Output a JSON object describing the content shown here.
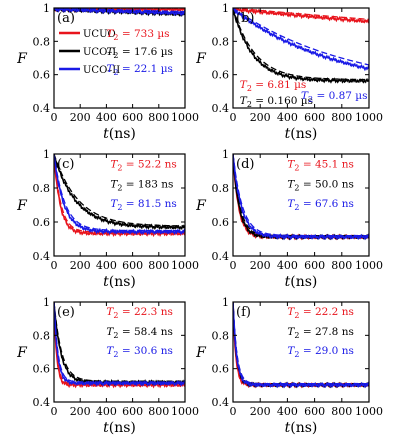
{
  "chart_data": [
    {
      "panel": "(a)",
      "type": "line",
      "xlabel": "t(ns)",
      "ylabel": "F",
      "xlim": [
        0,
        1000
      ],
      "ylim": [
        0.4,
        1.0
      ],
      "xticks": [
        "0",
        "200",
        "400",
        "600",
        "800",
        "1000"
      ],
      "yticks": [
        "0.4",
        "0.6",
        "0.8",
        "1"
      ],
      "legend": [
        {
          "label": "UCUO",
          "color": "#e8141c"
        },
        {
          "label": "UCO–I",
          "color": "#000000"
        },
        {
          "label": "UCO–II",
          "color": "#1a1ae6"
        }
      ],
      "annotations": [
        {
          "prefix": "T",
          "sub": "2",
          "value": " = 733 µs",
          "color": "#e8141c"
        },
        {
          "prefix": "T",
          "sub": "2",
          "value": " = 17.6 µs",
          "color": "#000000"
        },
        {
          "prefix": "T",
          "sub": "2",
          "value": " = 22.1 µs",
          "color": "#1a1ae6"
        }
      ],
      "series": [
        {
          "color": "#e8141c",
          "floor": 0.5,
          "T": 733000
        },
        {
          "color": "#000000",
          "floor": 0.5,
          "T": 17600
        },
        {
          "color": "#1a1ae6",
          "floor": 0.5,
          "T": 22100
        }
      ]
    },
    {
      "panel": "(b)",
      "type": "line",
      "xlabel": "t(ns)",
      "ylabel": "F",
      "xlim": [
        0,
        1000
      ],
      "ylim": [
        0.4,
        1.0
      ],
      "xticks": [
        "0",
        "200",
        "400",
        "600",
        "800",
        "1000"
      ],
      "yticks": [
        "0.4",
        "0.6",
        "0.8",
        "1"
      ],
      "annotations": [
        {
          "prefix": "T",
          "sub": "2",
          "value": " = 6.81 µs",
          "color": "#e8141c"
        },
        {
          "prefix": "T",
          "sub": "2",
          "value": " = 0.160 µs",
          "color": "#000000"
        },
        {
          "prefix": "T",
          "sub": "2",
          "value": " = 0.87 µs",
          "color": "#1a1ae6"
        }
      ],
      "series": [
        {
          "color": "#e8141c",
          "floor": 0.5,
          "T": 6810
        },
        {
          "color": "#000000",
          "floor": 0.57,
          "T": 160
        },
        {
          "color": "#1a1ae6",
          "floor": 0.5,
          "T": 870
        }
      ]
    },
    {
      "panel": "(c)",
      "type": "line",
      "xlabel": "t(ns)",
      "ylabel": "F",
      "xlim": [
        0,
        1000
      ],
      "ylim": [
        0.4,
        1.0
      ],
      "xticks": [
        "0",
        "200",
        "400",
        "600",
        "800",
        "1000"
      ],
      "yticks": [
        "0.4",
        "0.6",
        "0.8",
        "1"
      ],
      "annotations": [
        {
          "prefix": "T",
          "sub": "2",
          "value": " = 52.2 ns",
          "color": "#e8141c"
        },
        {
          "prefix": "T",
          "sub": "2",
          "value": " = 183 ns",
          "color": "#000000"
        },
        {
          "prefix": "T",
          "sub": "2",
          "value": " = 81.5 ns",
          "color": "#1a1ae6"
        }
      ],
      "series": [
        {
          "color": "#e8141c",
          "floor": 0.54,
          "T": 52.2
        },
        {
          "color": "#000000",
          "floor": 0.575,
          "T": 183
        },
        {
          "color": "#1a1ae6",
          "floor": 0.55,
          "T": 81.5
        }
      ]
    },
    {
      "panel": "(d)",
      "type": "line",
      "xlabel": "t(ns)",
      "ylabel": "F",
      "xlim": [
        0,
        1000
      ],
      "ylim": [
        0.4,
        1.0
      ],
      "xticks": [
        "0",
        "200",
        "400",
        "600",
        "800",
        "1000"
      ],
      "yticks": [
        "0.4",
        "0.6",
        "0.8",
        "1"
      ],
      "annotations": [
        {
          "prefix": "T",
          "sub": "2",
          "value": " = 45.1 ns",
          "color": "#e8141c"
        },
        {
          "prefix": "T",
          "sub": "2",
          "value": " = 50.0 ns",
          "color": "#000000"
        },
        {
          "prefix": "T",
          "sub": "2",
          "value": " = 67.6 ns",
          "color": "#1a1ae6"
        }
      ],
      "series": [
        {
          "color": "#e8141c",
          "floor": 0.52,
          "T": 45.1
        },
        {
          "color": "#000000",
          "floor": 0.52,
          "T": 50.0
        },
        {
          "color": "#1a1ae6",
          "floor": 0.52,
          "T": 67.6
        }
      ]
    },
    {
      "panel": "(e)",
      "type": "line",
      "xlabel": "t(ns)",
      "ylabel": "F",
      "xlim": [
        0,
        1000
      ],
      "ylim": [
        0.4,
        1.0
      ],
      "xticks": [
        "0",
        "200",
        "400",
        "600",
        "800",
        "1000"
      ],
      "yticks": [
        "0.4",
        "0.6",
        "0.8",
        "1"
      ],
      "annotations": [
        {
          "prefix": "T",
          "sub": "2",
          "value": " = 22.3 ns",
          "color": "#e8141c"
        },
        {
          "prefix": "T",
          "sub": "2",
          "value": " = 58.4 ns",
          "color": "#000000"
        },
        {
          "prefix": "T",
          "sub": "2",
          "value": " = 30.6 ns",
          "color": "#1a1ae6"
        }
      ],
      "series": [
        {
          "color": "#e8141c",
          "floor": 0.51,
          "T": 22.3
        },
        {
          "color": "#000000",
          "floor": 0.525,
          "T": 58.4
        },
        {
          "color": "#1a1ae6",
          "floor": 0.52,
          "T": 30.6
        }
      ]
    },
    {
      "panel": "(f)",
      "type": "line",
      "xlabel": "t(ns)",
      "ylabel": "F",
      "xlim": [
        0,
        1000
      ],
      "ylim": [
        0.4,
        1.0
      ],
      "xticks": [
        "0",
        "200",
        "400",
        "600",
        "800",
        "1000"
      ],
      "yticks": [
        "0.4",
        "0.6",
        "0.8",
        "1"
      ],
      "annotations": [
        {
          "prefix": "T",
          "sub": "2",
          "value": " = 22.2 ns",
          "color": "#e8141c"
        },
        {
          "prefix": "T",
          "sub": "2",
          "value": " = 27.8 ns",
          "color": "#000000"
        },
        {
          "prefix": "T",
          "sub": "2",
          "value": " = 29.0 ns",
          "color": "#1a1ae6"
        }
      ],
      "series": [
        {
          "color": "#e8141c",
          "floor": 0.51,
          "T": 22.2
        },
        {
          "color": "#000000",
          "floor": 0.51,
          "T": 27.8
        },
        {
          "color": "#1a1ae6",
          "floor": 0.51,
          "T": 29.0
        }
      ]
    }
  ]
}
